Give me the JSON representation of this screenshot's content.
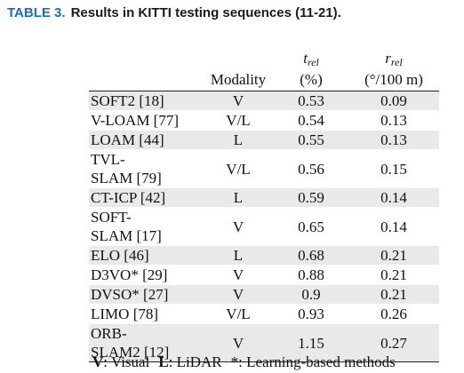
{
  "caption": {
    "label": "TABLE 3.",
    "text": "Results in KITTI testing sequences (11-21)."
  },
  "table": {
    "headers": {
      "modality": "Modality",
      "t_symbol": "t",
      "t_sub": "rel",
      "t_unit": "(%)",
      "r_symbol": "r",
      "r_sub": "rel",
      "r_unit": "(°/100 m)"
    },
    "rows": [
      {
        "method": "SOFT2 [18]",
        "modality": "V",
        "t_rel": "0.53",
        "r_rel": "0.09"
      },
      {
        "method": "V-LOAM [77]",
        "modality": "V/L",
        "t_rel": "0.54",
        "r_rel": "0.13"
      },
      {
        "method": "LOAM [44]",
        "modality": "L",
        "t_rel": "0.55",
        "r_rel": "0.13"
      },
      {
        "method": "TVL-SLAM [79]",
        "method_line1": "TVL-",
        "method_line2": "SLAM [79]",
        "modality": "V/L",
        "t_rel": "0.56",
        "r_rel": "0.15"
      },
      {
        "method": "CT-ICP [42]",
        "modality": "L",
        "t_rel": "0.59",
        "r_rel": "0.14"
      },
      {
        "method": "SOFT-SLAM [17]",
        "method_line1": "SOFT-",
        "method_line2": "SLAM [17]",
        "modality": "V",
        "t_rel": "0.65",
        "r_rel": "0.14"
      },
      {
        "method": "ELO [46]",
        "modality": "L",
        "t_rel": "0.68",
        "r_rel": "0.21"
      },
      {
        "method": "D3VO* [29]",
        "modality": "V",
        "t_rel": "0.88",
        "r_rel": "0.21"
      },
      {
        "method": "DVSO* [27]",
        "modality": "V",
        "t_rel": "0.9",
        "r_rel": "0.21"
      },
      {
        "method": "LIMO [78]",
        "modality": "V/L",
        "t_rel": "0.93",
        "r_rel": "0.26"
      },
      {
        "method": "ORB-SLAM2 [12]",
        "method_line1": "ORB-",
        "method_line2": "SLAM2 [12]",
        "modality": "V",
        "t_rel": "1.15",
        "r_rel": "0.27"
      }
    ]
  },
  "legend": {
    "v_key": "V",
    "v_text": ": Visual",
    "l_key": "L",
    "l_text": ": LiDAR",
    "star_text": "*: Learning-based methods"
  }
}
